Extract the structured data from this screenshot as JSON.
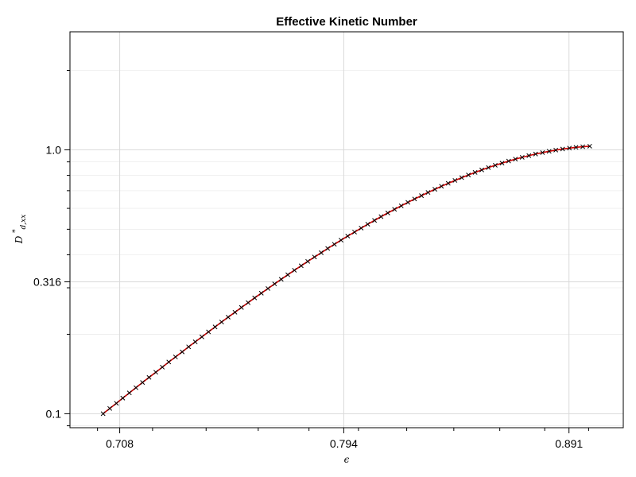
{
  "chart_data": {
    "type": "line",
    "title": "Effective Kinetic Number",
    "xlabel": "ϵ",
    "ylabel_main": "D",
    "ylabel_sup": "*",
    "ylabel_sub": "d,xx",
    "x_scale": "log",
    "y_scale": "log",
    "xlim": [
      0.6902,
      0.9161
    ],
    "ylim": [
      0.0885,
      2.8
    ],
    "x_ticks": [
      0.708,
      0.794,
      0.891
    ],
    "x_tick_labels": [
      "0.708",
      "0.794",
      "0.891"
    ],
    "y_ticks": [
      0.1,
      0.316,
      1.0
    ],
    "y_tick_labels": [
      "0.1",
      "0.316",
      "1.0"
    ],
    "grid": true,
    "series": [
      {
        "color": "#cc0000",
        "style": "line",
        "x": [
          0.702,
          0.7044,
          0.7068,
          0.7091,
          0.7115,
          0.7139,
          0.7163,
          0.7187,
          0.7212,
          0.7236,
          0.726,
          0.7285,
          0.731,
          0.7334,
          0.7359,
          0.7384,
          0.7409,
          0.7434,
          0.7459,
          0.7484,
          0.751,
          0.7535,
          0.7561,
          0.7586,
          0.7612,
          0.7638,
          0.7664,
          0.769,
          0.7716,
          0.7742,
          0.7769,
          0.7795,
          0.7822,
          0.7849,
          0.7875,
          0.7902,
          0.7929,
          0.7956,
          0.7984,
          0.8011,
          0.8038,
          0.8066,
          0.8093,
          0.8121,
          0.8149,
          0.8177,
          0.8205,
          0.8233,
          0.8262,
          0.829,
          0.8319,
          0.8347,
          0.8376,
          0.8405,
          0.8434,
          0.8463,
          0.8492,
          0.8521,
          0.855,
          0.858,
          0.861,
          0.8639,
          0.8669,
          0.8699,
          0.8729,
          0.8759,
          0.879,
          0.882,
          0.885,
          0.8881,
          0.8912,
          0.8942,
          0.8973,
          0.9005
        ],
        "y": [
          0.1,
          0.1047,
          0.1095,
          0.1146,
          0.1199,
          0.1255,
          0.1313,
          0.1373,
          0.1436,
          0.1501,
          0.157,
          0.1641,
          0.1715,
          0.1792,
          0.1872,
          0.1955,
          0.2042,
          0.2132,
          0.2226,
          0.2322,
          0.2423,
          0.2527,
          0.2635,
          0.2747,
          0.2862,
          0.2981,
          0.3104,
          0.3231,
          0.3362,
          0.3496,
          0.3635,
          0.3777,
          0.3924,
          0.4074,
          0.4228,
          0.4385,
          0.4546,
          0.471,
          0.4878,
          0.505,
          0.5224,
          0.5401,
          0.5581,
          0.5763,
          0.5947,
          0.6134,
          0.6322,
          0.6511,
          0.6702,
          0.6893,
          0.7084,
          0.7275,
          0.7465,
          0.7654,
          0.7842,
          0.8027,
          0.821,
          0.839,
          0.8565,
          0.8737,
          0.8903,
          0.9064,
          0.9218,
          0.9365,
          0.9505,
          0.9637,
          0.9759,
          0.9872,
          0.9975,
          1.0068,
          1.0149,
          1.0218,
          1.0274,
          1.0318
        ]
      },
      {
        "color": "#000000",
        "style": "x-markers",
        "x": [
          0.702,
          0.7044,
          0.7068,
          0.7091,
          0.7115,
          0.7139,
          0.7163,
          0.7187,
          0.7212,
          0.7236,
          0.726,
          0.7285,
          0.731,
          0.7334,
          0.7359,
          0.7384,
          0.7409,
          0.7434,
          0.7459,
          0.7484,
          0.751,
          0.7535,
          0.7561,
          0.7586,
          0.7612,
          0.7638,
          0.7664,
          0.769,
          0.7716,
          0.7742,
          0.7769,
          0.7795,
          0.7822,
          0.7849,
          0.7875,
          0.7902,
          0.7929,
          0.7956,
          0.7984,
          0.8011,
          0.8038,
          0.8066,
          0.8093,
          0.8121,
          0.8149,
          0.8177,
          0.8205,
          0.8233,
          0.8262,
          0.829,
          0.8319,
          0.8347,
          0.8376,
          0.8405,
          0.8434,
          0.8463,
          0.8492,
          0.8521,
          0.855,
          0.858,
          0.861,
          0.8639,
          0.8669,
          0.8699,
          0.8729,
          0.8759,
          0.879,
          0.882,
          0.885,
          0.8881,
          0.8912,
          0.8942,
          0.8973,
          0.9005
        ],
        "y": [
          0.1,
          0.1047,
          0.1095,
          0.1146,
          0.1199,
          0.1255,
          0.1313,
          0.1373,
          0.1436,
          0.1501,
          0.157,
          0.1641,
          0.1715,
          0.1792,
          0.1872,
          0.1955,
          0.2042,
          0.2132,
          0.2226,
          0.2322,
          0.2423,
          0.2527,
          0.2635,
          0.2747,
          0.2862,
          0.2981,
          0.3104,
          0.3231,
          0.3362,
          0.3496,
          0.3635,
          0.3777,
          0.3924,
          0.4074,
          0.4228,
          0.4385,
          0.4546,
          0.471,
          0.4878,
          0.505,
          0.5224,
          0.5401,
          0.5581,
          0.5763,
          0.5947,
          0.6134,
          0.6322,
          0.6511,
          0.6702,
          0.6893,
          0.7084,
          0.7275,
          0.7465,
          0.7654,
          0.7842,
          0.8027,
          0.821,
          0.839,
          0.8565,
          0.8737,
          0.8903,
          0.9064,
          0.9218,
          0.9365,
          0.9505,
          0.9637,
          0.9759,
          0.9872,
          0.9975,
          1.0068,
          1.0149,
          1.0218,
          1.0274,
          1.0318
        ]
      }
    ]
  }
}
